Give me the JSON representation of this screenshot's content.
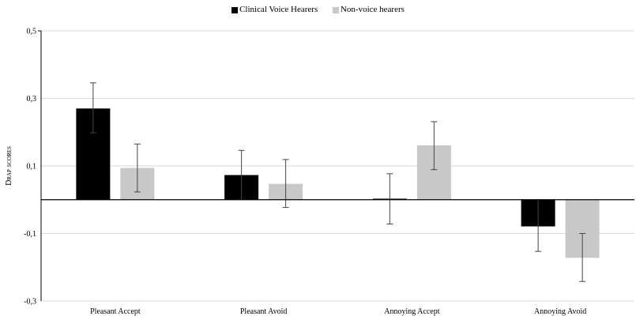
{
  "chart_data": {
    "type": "bar",
    "title": "",
    "xlabel": "",
    "ylabel": "Drap scores",
    "ylim": [
      -0.3,
      0.5
    ],
    "yticks": [
      "0,5",
      "0,3",
      "0,1",
      "-0,1",
      "-0,3"
    ],
    "ytick_values": [
      0.5,
      0.3,
      0.1,
      -0.1,
      -0.3
    ],
    "categories": [
      "Pleasant Accept",
      "Pleasant Avoid",
      "Annoying Accept",
      "Annoying Avoid"
    ],
    "series": [
      {
        "name": "Clinical Voice Hearers",
        "color": "#000000",
        "values": [
          0.27,
          0.073,
          0.003,
          -0.079
        ],
        "error_low": [
          0.198,
          0.001,
          -0.072,
          -0.153
        ],
        "error_high": [
          0.346,
          0.146,
          0.077,
          0.0
        ]
      },
      {
        "name": "Non-voice hearers",
        "color": "#c8c8c8",
        "values": [
          0.094,
          0.047,
          0.161,
          -0.172
        ],
        "error_low": [
          0.023,
          -0.023,
          0.089,
          -0.242
        ],
        "error_high": [
          0.165,
          0.119,
          0.231,
          -0.1
        ]
      }
    ],
    "grid": true,
    "legend": "top-center"
  },
  "colors": {
    "grid": "#d9d9d9",
    "axis": "#000000",
    "error_bar": "#444444"
  }
}
